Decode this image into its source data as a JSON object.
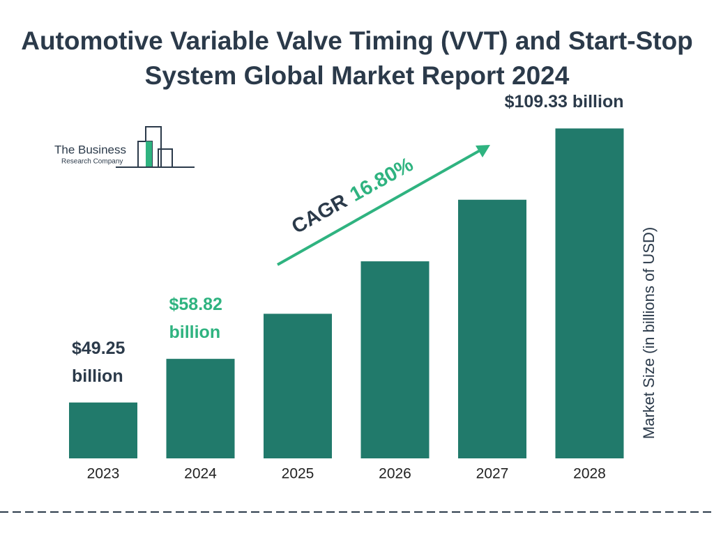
{
  "chart_data": {
    "type": "bar",
    "title": "Automotive Variable Valve Timing (VVT) and Start-Stop System Global Market Report 2024",
    "categories": [
      "2023",
      "2024",
      "2025",
      "2026",
      "2027",
      "2028"
    ],
    "values": [
      49.25,
      58.82,
      68.7,
      80.2,
      93.7,
      109.33
    ],
    "value_labels": [
      "$49.25 billion",
      "$58.82 billion",
      null,
      null,
      null,
      "$109.33 billion"
    ],
    "value_label_colors": [
      "#2b3a4a",
      "#2fb380",
      null,
      null,
      null,
      "#2b3a4a"
    ],
    "color": "#217a6b",
    "ylim": [
      37,
      110
    ],
    "y_axis_label": "Market Size (in billions of USD)",
    "cagr": {
      "label": "CAGR",
      "value": "16.80%"
    }
  },
  "logo": {
    "line1": "The Business",
    "line2": "Research Company"
  }
}
